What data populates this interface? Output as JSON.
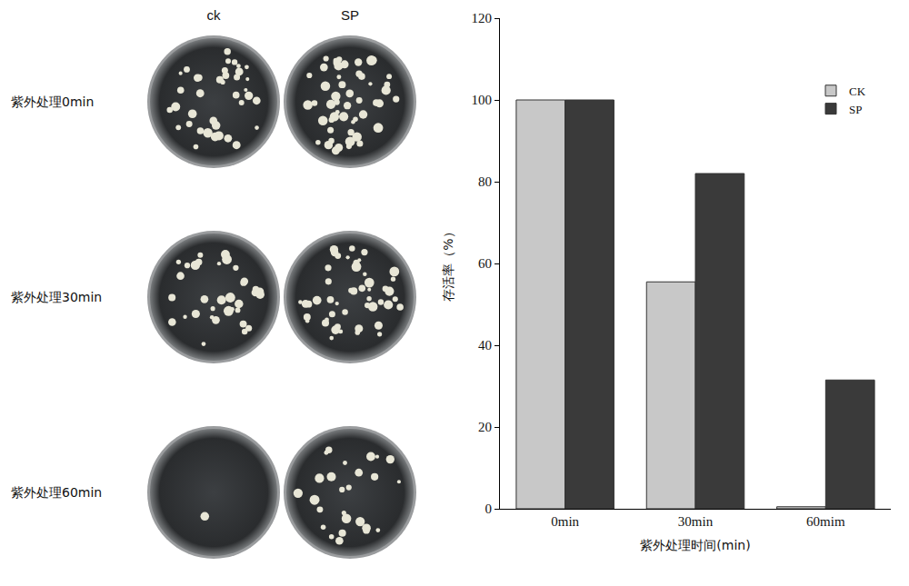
{
  "panel": {
    "column_heads": [
      "ck",
      "SP"
    ],
    "row_labels": [
      "紫外处理0min",
      "紫外处理30min",
      "紫外处理60min"
    ]
  },
  "chart_data": {
    "type": "bar",
    "categories": [
      "0min",
      "30min",
      "60mim"
    ],
    "series": [
      {
        "name": "CK",
        "color": "#c8c8c8",
        "values": [
          100,
          55.5,
          0.5
        ]
      },
      {
        "name": "SP",
        "color": "#3a3a3a",
        "values": [
          100,
          82,
          31.5
        ]
      }
    ],
    "x_label": "紫外处理时间(min)",
    "y_label": "存活率（%）",
    "ylim": [
      0,
      120
    ],
    "yticks": [
      0,
      20,
      40,
      60,
      80,
      100,
      120
    ],
    "grid": false,
    "legend": "upper right"
  }
}
